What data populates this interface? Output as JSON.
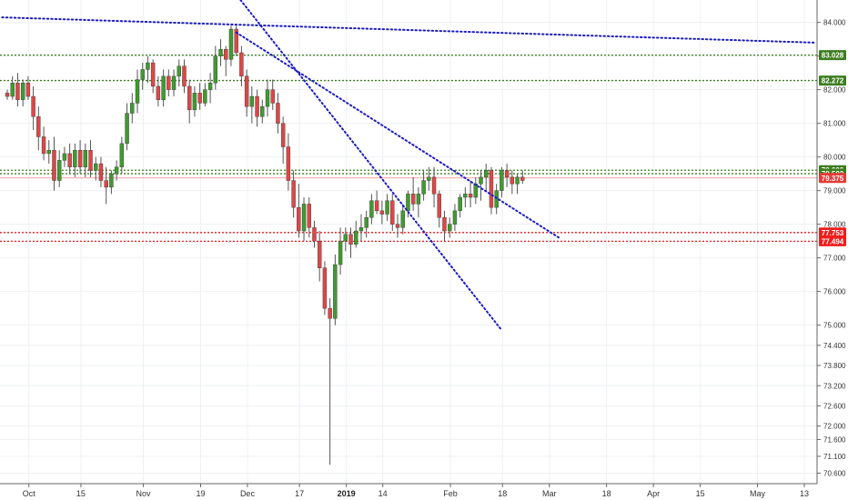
{
  "chart_data": {
    "type": "candlestick",
    "ylim": [
      70.45,
      84.45
    ],
    "y_ticks": [
      "84.000",
      "83.000",
      "82.000",
      "81.000",
      "80.000",
      "79.000",
      "78.000",
      "77.000",
      "76.000",
      "75.000",
      "74.400",
      "73.800",
      "73.200",
      "72.600",
      "72.000",
      "71.600",
      "71.100",
      "70.600"
    ],
    "y_tick_values": [
      84.0,
      83.0,
      82.0,
      81.0,
      80.0,
      79.0,
      78.0,
      77.0,
      76.0,
      75.0,
      74.4,
      73.8,
      73.2,
      72.6,
      72.0,
      71.6,
      71.1,
      70.6
    ],
    "x_ticks": [
      {
        "label": "Oct",
        "bar": 1
      },
      {
        "label": "15",
        "bar": 11
      },
      {
        "label": "Nov",
        "bar": 23
      },
      {
        "label": "19",
        "bar": 34
      },
      {
        "label": "Dec",
        "bar": 43
      },
      {
        "label": "17",
        "bar": 53
      },
      {
        "label": "2019",
        "bar": 62,
        "bold": true
      },
      {
        "label": "14",
        "bar": 69
      },
      {
        "label": "Feb",
        "bar": 82
      },
      {
        "label": "18",
        "bar": 92
      },
      {
        "label": "Mar",
        "bar": 101
      },
      {
        "label": "18",
        "bar": 112
      },
      {
        "label": "Apr",
        "bar": 121
      },
      {
        "label": "15",
        "bar": 130
      },
      {
        "label": "May",
        "bar": 141
      },
      {
        "label": "13",
        "bar": 150
      }
    ],
    "candles": [
      [
        81.9,
        82.0,
        81.7,
        81.8
      ],
      [
        81.8,
        82.4,
        81.7,
        82.2
      ],
      [
        82.2,
        82.5,
        81.5,
        81.7
      ],
      [
        81.7,
        82.3,
        81.5,
        82.2
      ],
      [
        82.2,
        82.4,
        81.7,
        81.8
      ],
      [
        81.8,
        82.1,
        80.8,
        81.2
      ],
      [
        81.2,
        81.5,
        80.2,
        80.6
      ],
      [
        80.6,
        80.9,
        79.9,
        80.1
      ],
      [
        80.1,
        80.5,
        79.8,
        80.2
      ],
      [
        80.2,
        80.6,
        79.0,
        79.3
      ],
      [
        79.3,
        80.2,
        79.1,
        79.9
      ],
      [
        79.9,
        80.3,
        79.7,
        80.1
      ],
      [
        80.1,
        80.4,
        79.5,
        79.7
      ],
      [
        79.7,
        80.4,
        79.4,
        80.2
      ],
      [
        80.2,
        80.5,
        79.5,
        79.7
      ],
      [
        79.7,
        80.4,
        79.4,
        80.2
      ],
      [
        80.2,
        80.5,
        79.4,
        79.6
      ],
      [
        79.6,
        80.0,
        79.3,
        79.8
      ],
      [
        79.8,
        80.0,
        79.1,
        79.3
      ],
      [
        79.3,
        79.7,
        78.6,
        79.1
      ],
      [
        79.1,
        79.6,
        78.9,
        79.5
      ],
      [
        79.5,
        79.9,
        79.3,
        79.7
      ],
      [
        79.7,
        80.6,
        79.5,
        80.4
      ],
      [
        80.4,
        81.6,
        80.2,
        81.3
      ],
      [
        81.3,
        81.9,
        81.0,
        81.6
      ],
      [
        81.6,
        82.6,
        81.3,
        82.3
      ],
      [
        82.3,
        82.8,
        82.0,
        82.6
      ],
      [
        82.6,
        83.0,
        82.2,
        82.8
      ],
      [
        82.8,
        82.9,
        81.9,
        82.1
      ],
      [
        82.1,
        82.4,
        81.5,
        81.7
      ],
      [
        81.7,
        82.6,
        81.5,
        82.4
      ],
      [
        82.4,
        82.6,
        81.8,
        82.0
      ],
      [
        82.0,
        82.6,
        81.8,
        82.4
      ],
      [
        82.4,
        82.9,
        82.1,
        82.7
      ],
      [
        82.7,
        82.9,
        81.9,
        82.1
      ],
      [
        82.1,
        82.3,
        81.0,
        81.4
      ],
      [
        81.4,
        82.1,
        81.2,
        81.9
      ],
      [
        81.9,
        82.2,
        81.4,
        81.6
      ],
      [
        81.6,
        82.2,
        81.5,
        82.0
      ],
      [
        82.0,
        82.5,
        81.6,
        82.2
      ],
      [
        82.2,
        83.3,
        82.0,
        83.0
      ],
      [
        83.0,
        83.5,
        82.7,
        83.2
      ],
      [
        83.2,
        83.3,
        82.4,
        82.9
      ],
      [
        82.9,
        83.9,
        82.7,
        83.8
      ],
      [
        83.8,
        83.9,
        83.0,
        83.1
      ],
      [
        83.1,
        83.3,
        82.1,
        82.4
      ],
      [
        82.4,
        82.6,
        81.2,
        81.5
      ],
      [
        81.5,
        82.1,
        81.0,
        81.8
      ],
      [
        81.8,
        82.0,
        80.9,
        81.2
      ],
      [
        81.2,
        81.7,
        81.0,
        81.5
      ],
      [
        81.5,
        82.3,
        81.2,
        82.0
      ],
      [
        82.0,
        82.3,
        81.4,
        81.6
      ],
      [
        81.6,
        81.9,
        80.7,
        81.0
      ],
      [
        81.0,
        81.2,
        79.8,
        80.3
      ],
      [
        80.3,
        80.7,
        79.0,
        79.3
      ],
      [
        79.3,
        79.6,
        78.2,
        78.5
      ],
      [
        78.5,
        79.2,
        77.6,
        77.8
      ],
      [
        77.8,
        78.8,
        77.5,
        78.6
      ],
      [
        78.6,
        78.8,
        77.6,
        77.9
      ],
      [
        77.9,
        78.1,
        77.3,
        77.5
      ],
      [
        77.5,
        77.8,
        76.3,
        76.7
      ],
      [
        76.7,
        76.9,
        75.3,
        75.5
      ],
      [
        75.5,
        75.8,
        70.85,
        75.2
      ],
      [
        75.2,
        77.1,
        75.0,
        76.8
      ],
      [
        76.8,
        77.9,
        76.5,
        77.5
      ],
      [
        77.5,
        77.9,
        77.2,
        77.7
      ],
      [
        77.7,
        77.9,
        77.0,
        77.4
      ],
      [
        77.4,
        78.1,
        77.3,
        77.8
      ],
      [
        77.8,
        78.3,
        77.5,
        77.9
      ],
      [
        77.9,
        78.4,
        77.6,
        78.2
      ],
      [
        78.2,
        78.9,
        78.0,
        78.7
      ],
      [
        78.7,
        79.0,
        78.3,
        78.4
      ],
      [
        78.4,
        78.7,
        78.0,
        78.3
      ],
      [
        78.3,
        78.9,
        78.1,
        78.7
      ],
      [
        78.7,
        78.9,
        77.8,
        78.0
      ],
      [
        78.0,
        78.3,
        77.6,
        77.9
      ],
      [
        77.9,
        78.6,
        77.7,
        78.4
      ],
      [
        78.4,
        79.0,
        78.2,
        78.9
      ],
      [
        78.9,
        79.4,
        78.4,
        78.6
      ],
      [
        78.6,
        79.1,
        78.2,
        78.9
      ],
      [
        78.9,
        79.6,
        78.7,
        79.3
      ],
      [
        79.3,
        79.7,
        79.0,
        79.4
      ],
      [
        79.4,
        79.7,
        78.5,
        78.9
      ],
      [
        78.9,
        79.0,
        77.9,
        78.2
      ],
      [
        78.2,
        78.4,
        77.5,
        77.8
      ],
      [
        77.8,
        78.2,
        77.6,
        78.0
      ],
      [
        78.0,
        78.6,
        77.8,
        78.4
      ],
      [
        78.4,
        78.9,
        78.2,
        78.8
      ],
      [
        78.8,
        79.1,
        78.5,
        78.9
      ],
      [
        78.9,
        79.3,
        78.5,
        78.8
      ],
      [
        78.8,
        79.4,
        78.6,
        79.2
      ],
      [
        79.2,
        79.6,
        78.7,
        79.4
      ],
      [
        79.4,
        79.8,
        79.0,
        79.6
      ],
      [
        79.6,
        79.7,
        78.3,
        78.5
      ],
      [
        78.5,
        79.2,
        78.3,
        79.0
      ],
      [
        79.0,
        79.7,
        78.8,
        79.6
      ],
      [
        79.6,
        79.8,
        79.1,
        79.4
      ],
      [
        79.4,
        79.6,
        78.9,
        79.2
      ],
      [
        79.2,
        79.5,
        78.9,
        79.4
      ],
      [
        79.4,
        79.6,
        79.2,
        79.3
      ]
    ],
    "levels": [
      {
        "value": 83.028,
        "label": "83.028",
        "color": "#3c7d1e",
        "style": "dotted"
      },
      {
        "value": 82.272,
        "label": "82.272",
        "color": "#3c7d1e",
        "style": "dotted"
      },
      {
        "value": 79.606,
        "label": "79.606",
        "color": "#3c7d1e",
        "style": "dotted"
      },
      {
        "value": 79.502,
        "label": "79.502",
        "color": "#3c7d1e",
        "style": "dotted"
      },
      {
        "value": 79.375,
        "label": "79.375",
        "color": "#e53b36",
        "style": "solid"
      },
      {
        "value": 77.753,
        "label": "77.753",
        "color": "#ef1d1d",
        "style": "dotted"
      },
      {
        "value": 77.494,
        "label": "77.494",
        "color": "#ef1d1d",
        "style": "dotted"
      }
    ],
    "trendlines": [
      {
        "from": [
          -1,
          84.15
        ],
        "to": [
          155,
          83.4
        ],
        "color": "#1b1bc4"
      },
      {
        "from": [
          38,
          86.0
        ],
        "to": [
          95,
          74.85
        ],
        "color": "#1b1bc4"
      },
      {
        "from": [
          44,
          83.7
        ],
        "to": [
          106,
          77.6
        ],
        "color": "#1b1bc4"
      }
    ],
    "colors": {
      "up": "#3f9b2e",
      "down": "#dd4747",
      "wick": "#555555"
    }
  }
}
